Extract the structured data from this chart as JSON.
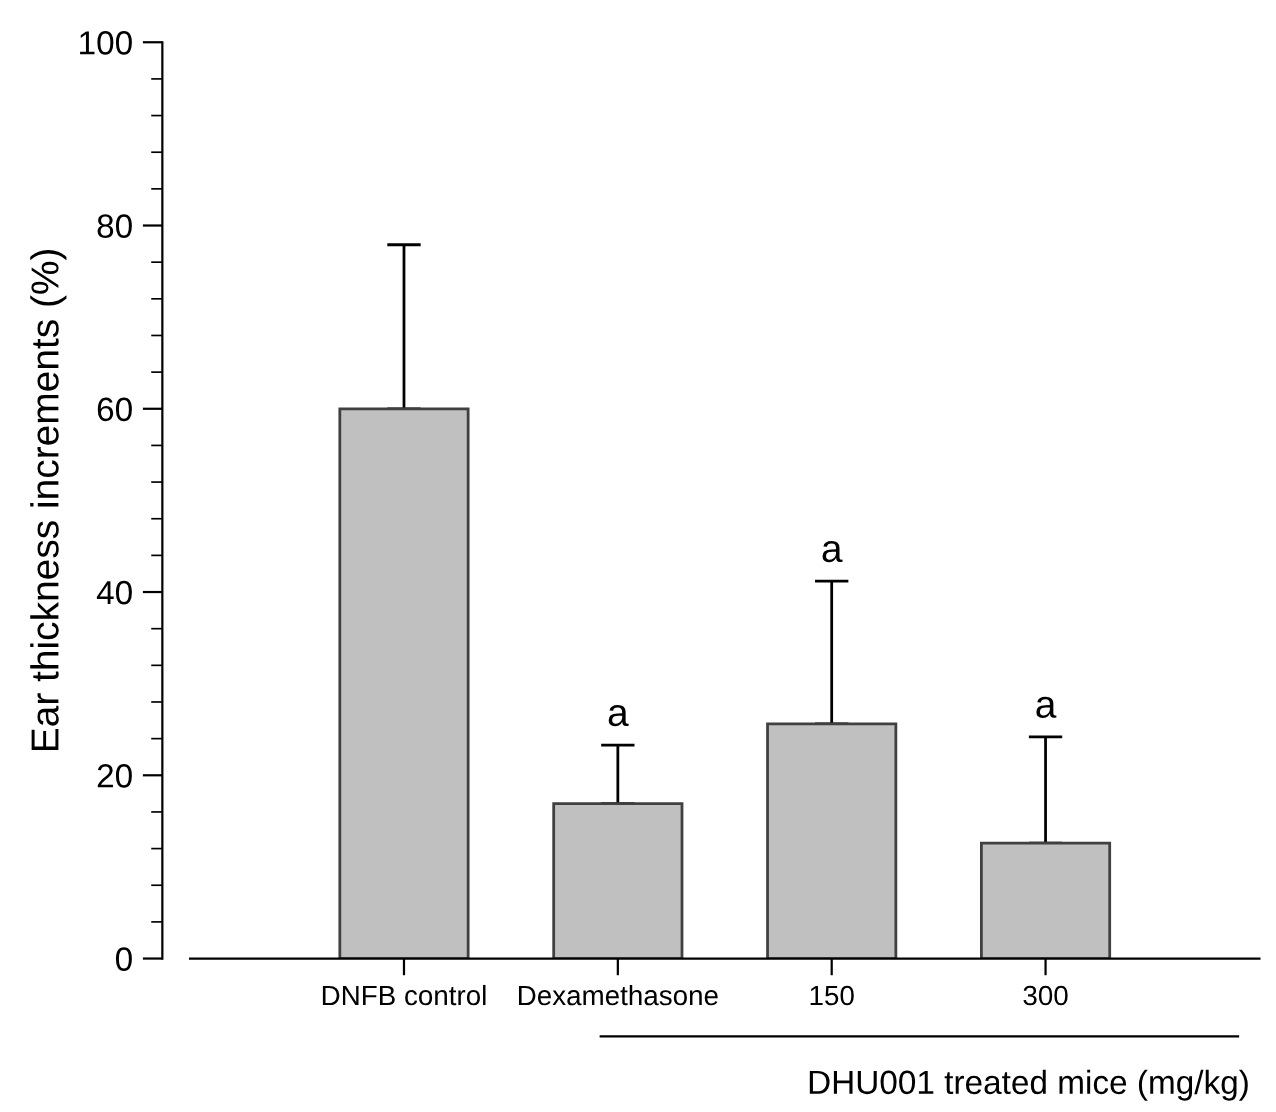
{
  "chart_data": {
    "type": "bar",
    "ylabel": "Ear thickness increments (%)",
    "categories": [
      "DNFB control",
      "Dexamethasone",
      "150",
      "300"
    ],
    "values": [
      60.0,
      16.9,
      25.6,
      12.6
    ],
    "errors": [
      [
        60.0,
        77.9
      ],
      [
        16.9,
        23.3
      ],
      [
        25.6,
        41.2
      ],
      [
        12.6,
        24.2
      ]
    ],
    "color": "#c0c0c0",
    "ylim": [
      0,
      100
    ],
    "yticks": [
      0,
      20,
      40,
      60,
      80,
      100
    ],
    "annotations": [
      {
        "text": "a",
        "x": "Dexamethasone",
        "y": 23.3
      },
      {
        "text": "a",
        "x": "150",
        "y": 41.2
      },
      {
        "text": "a",
        "x": "300",
        "y": 24.2
      },
      "DHU001 treated mice (mg/kg)"
    ],
    "grid": false,
    "legend": false
  }
}
